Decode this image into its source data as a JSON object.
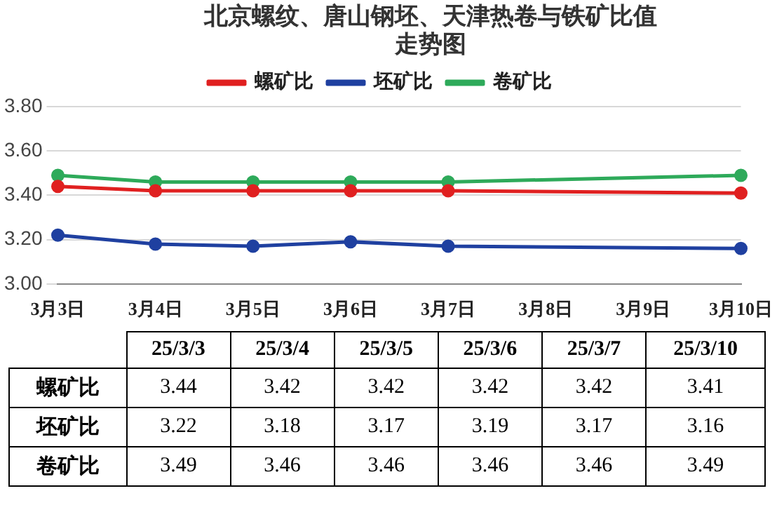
{
  "chart_data": [
    {
      "type": "line",
      "title": "北京螺纹、唐山钢坯、天津热卷与铁矿比值走势图",
      "categories": [
        "3月3日",
        "3月4日",
        "3月5日",
        "3月6日",
        "3月7日",
        "3月8日",
        "3月9日",
        "3月10日"
      ],
      "series": [
        {
          "name": "螺矿比",
          "color": "#e02020",
          "values": [
            3.44,
            3.42,
            3.42,
            3.42,
            3.42,
            null,
            null,
            3.41
          ]
        },
        {
          "name": "坯矿比",
          "color": "#1f40a0",
          "values": [
            3.22,
            3.18,
            3.17,
            3.19,
            3.17,
            null,
            null,
            3.16
          ]
        },
        {
          "name": "卷矿比",
          "color": "#2eaa5a",
          "values": [
            3.49,
            3.46,
            3.46,
            3.46,
            3.46,
            null,
            null,
            3.49
          ]
        }
      ],
      "ylim": [
        3.0,
        3.8
      ],
      "yticks": [
        {
          "value": 3.0,
          "label": "3.00"
        },
        {
          "value": 3.2,
          "label": "3.20"
        },
        {
          "value": 3.4,
          "label": "3.40"
        },
        {
          "value": 3.6,
          "label": "3.60"
        },
        {
          "value": 3.8,
          "label": "3.80"
        }
      ],
      "grid": "y",
      "legend": "top",
      "marker": "circle",
      "line_style": "solid"
    },
    {
      "type": "other",
      "categories": [
        "25/3/3",
        "25/3/4",
        "25/3/5",
        "25/3/6",
        "25/3/7",
        "25/3/10"
      ],
      "series": [
        {
          "name": "螺矿比",
          "values": [
            3.44,
            3.42,
            3.42,
            3.42,
            3.42,
            3.41
          ]
        },
        {
          "name": "坯矿比",
          "values": [
            3.22,
            3.18,
            3.17,
            3.19,
            3.17,
            3.16
          ]
        },
        {
          "name": "卷矿比",
          "values": [
            3.49,
            3.46,
            3.46,
            3.46,
            3.46,
            3.49
          ]
        }
      ],
      "data_labels": true
    }
  ]
}
